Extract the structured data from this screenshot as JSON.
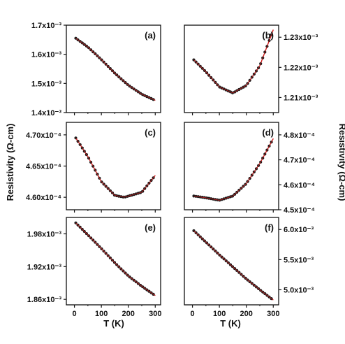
{
  "figure": {
    "ylabel": "Resistivity (Ω-cm)",
    "xlabel": "T (K)",
    "colors": {
      "fit": "#d42020",
      "data": "#1a1a1a",
      "axes": "#111111"
    }
  },
  "chart_data": [
    {
      "type": "scatter",
      "label": "(a)",
      "x_range": [
        -30,
        320
      ],
      "y_range": [
        0.0014,
        0.0017
      ],
      "xticks": [
        0,
        100,
        200,
        300
      ],
      "xtick_labels": [
        "0",
        "100",
        "200",
        "300"
      ],
      "yticks": [
        0.0014,
        0.0015,
        0.0016,
        0.0017
      ],
      "ytick_labels": [
        "1.4x10⁻³",
        "1.5x10⁻³",
        "1.6x10⁻³",
        "1.7x10⁻³"
      ],
      "yaxis_side": "left",
      "show_xtick_labels": false,
      "fit": [
        [
          5,
          0.001655
        ],
        [
          50,
          0.001625
        ],
        [
          100,
          0.001582
        ],
        [
          150,
          0.001535
        ],
        [
          200,
          0.001494
        ],
        [
          250,
          0.001463
        ],
        [
          300,
          0.001442
        ]
      ]
    },
    {
      "type": "scatter",
      "label": "(b)",
      "x_range": [
        -30,
        320
      ],
      "y_range": [
        0.001205,
        0.001234
      ],
      "xticks": [
        0,
        100,
        200,
        300
      ],
      "xtick_labels": [
        "0",
        "100",
        "200",
        "300"
      ],
      "yticks": [
        0.00121,
        0.00122,
        0.00123
      ],
      "ytick_labels": [
        "1.21x10⁻³",
        "1.22x10⁻³",
        "1.23x10⁻³"
      ],
      "yaxis_side": "right",
      "show_xtick_labels": false,
      "fit": [
        [
          5,
          0.0012225
        ],
        [
          50,
          0.0012185
        ],
        [
          100,
          0.0012135
        ],
        [
          150,
          0.0012115
        ],
        [
          200,
          0.001214
        ],
        [
          250,
          0.0012205
        ],
        [
          300,
          0.0012325
        ]
      ]
    },
    {
      "type": "scatter",
      "label": "(c)",
      "x_range": [
        -30,
        320
      ],
      "y_range": [
        0.000458,
        0.000472
      ],
      "xticks": [
        0,
        100,
        200,
        300
      ],
      "xtick_labels": [
        "0",
        "100",
        "200",
        "300"
      ],
      "yticks": [
        0.00046,
        0.000465,
        0.00047
      ],
      "ytick_labels": [
        "4.60x10⁻⁴",
        "4.65x10⁻⁴",
        "4.70x10⁻⁴"
      ],
      "yaxis_side": "left",
      "show_xtick_labels": false,
      "fit": [
        [
          5,
          0.0004695
        ],
        [
          50,
          0.0004665
        ],
        [
          100,
          0.0004625
        ],
        [
          150,
          0.0004603
        ],
        [
          185,
          0.00046
        ],
        [
          250,
          0.0004608
        ],
        [
          300,
          0.0004635
        ]
      ]
    },
    {
      "type": "scatter",
      "label": "(d)",
      "x_range": [
        -30,
        320
      ],
      "y_range": [
        0.00045,
        0.000485
      ],
      "xticks": [
        0,
        100,
        200,
        300
      ],
      "xtick_labels": [
        "0",
        "100",
        "200",
        "300"
      ],
      "yticks": [
        0.00045,
        0.00046,
        0.00047,
        0.00048
      ],
      "ytick_labels": [
        "4.5x10⁻⁴",
        "4.6x10⁻⁴",
        "4.7x10⁻⁴",
        "4.8x10⁻⁴"
      ],
      "yaxis_side": "right",
      "show_xtick_labels": false,
      "fit": [
        [
          5,
          0.0004555
        ],
        [
          50,
          0.0004548
        ],
        [
          100,
          0.0004538
        ],
        [
          150,
          0.0004555
        ],
        [
          200,
          0.0004605
        ],
        [
          250,
          0.0004685
        ],
        [
          300,
          0.0004785
        ]
      ]
    },
    {
      "type": "scatter",
      "label": "(e)",
      "x_range": [
        -30,
        320
      ],
      "y_range": [
        0.00185,
        0.00201
      ],
      "xticks": [
        0,
        100,
        200,
        300
      ],
      "xtick_labels": [
        "0",
        "100",
        "200",
        "300"
      ],
      "yticks": [
        0.00186,
        0.00192,
        0.00198
      ],
      "ytick_labels": [
        "1.86x10⁻³",
        "1.92x10⁻³",
        "1.98x10⁻³"
      ],
      "yaxis_side": "left",
      "show_xtick_labels": true,
      "fit": [
        [
          5,
          0.002
        ],
        [
          50,
          0.001978
        ],
        [
          100,
          0.001953
        ],
        [
          150,
          0.001927
        ],
        [
          200,
          0.001903
        ],
        [
          250,
          0.001884
        ],
        [
          300,
          0.001867
        ]
      ]
    },
    {
      "type": "scatter",
      "label": "(f)",
      "x_range": [
        -30,
        320
      ],
      "y_range": [
        0.00475,
        0.0062
      ],
      "xticks": [
        0,
        100,
        200,
        300
      ],
      "xtick_labels": [
        "0",
        "100",
        "200",
        "300"
      ],
      "yticks": [
        0.005,
        0.0055,
        0.006
      ],
      "ytick_labels": [
        "5.0x10⁻³",
        "5.5x10⁻³",
        "6.0x10⁻³"
      ],
      "yaxis_side": "right",
      "show_xtick_labels": true,
      "fit": [
        [
          5,
          0.00598
        ],
        [
          50,
          0.00579
        ],
        [
          100,
          0.00558
        ],
        [
          150,
          0.00538
        ],
        [
          200,
          0.00518
        ],
        [
          250,
          0.005
        ],
        [
          300,
          0.00483
        ]
      ]
    }
  ]
}
